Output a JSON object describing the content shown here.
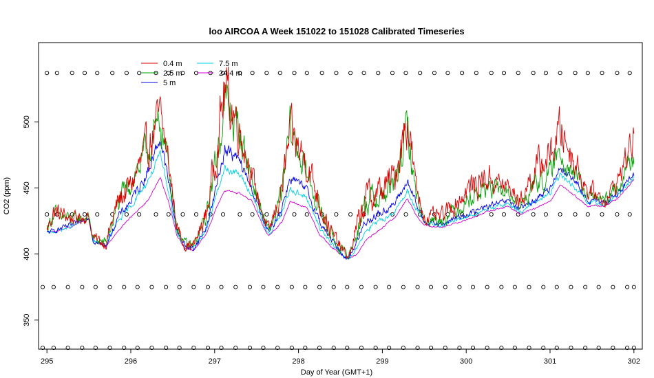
{
  "chart_data": {
    "type": "line",
    "title": "loo AIRCOA A  Week 151022 to 151028  Calibrated Timeseries",
    "xlabel": "Day of Year (GMT+1)",
    "ylabel": "CO2 (ppm)",
    "xlim": [
      294.9,
      302.1
    ],
    "ylim": [
      328,
      560
    ],
    "xticks": [
      295,
      296,
      297,
      298,
      299,
      300,
      301,
      302
    ],
    "yticks": [
      350,
      400,
      450,
      500
    ],
    "grid": false,
    "legend_position": "top-left",
    "series": [
      {
        "name": "0.4 m",
        "color": "#dd0000",
        "amp": 1.35,
        "noise": 9,
        "base": [
          [
            295.0,
            418
          ],
          [
            295.08,
            432
          ],
          [
            295.3,
            427
          ],
          [
            295.5,
            428
          ],
          [
            295.55,
            412
          ],
          [
            295.7,
            408
          ],
          [
            295.85,
            440
          ],
          [
            296.0,
            452
          ],
          [
            296.2,
            480
          ],
          [
            296.35,
            505
          ],
          [
            296.45,
            470
          ],
          [
            296.55,
            420
          ],
          [
            296.65,
            407
          ],
          [
            296.75,
            406
          ],
          [
            296.9,
            430
          ],
          [
            297.0,
            470
          ],
          [
            297.12,
            525
          ],
          [
            297.3,
            495
          ],
          [
            297.45,
            458
          ],
          [
            297.6,
            425
          ],
          [
            297.65,
            417
          ],
          [
            297.8,
            448
          ],
          [
            297.9,
            490
          ],
          [
            298.1,
            470
          ],
          [
            298.25,
            440
          ],
          [
            298.4,
            415
          ],
          [
            298.55,
            400
          ],
          [
            298.6,
            398
          ],
          [
            298.7,
            420
          ],
          [
            298.8,
            442
          ],
          [
            299.0,
            448
          ],
          [
            299.15,
            460
          ],
          [
            299.3,
            505
          ],
          [
            299.4,
            450
          ],
          [
            299.5,
            428
          ],
          [
            299.7,
            428
          ],
          [
            299.9,
            440
          ],
          [
            300.0,
            448
          ],
          [
            300.1,
            452
          ],
          [
            300.25,
            458
          ],
          [
            300.5,
            450
          ],
          [
            300.65,
            440
          ],
          [
            300.8,
            462
          ],
          [
            301.0,
            475
          ],
          [
            301.12,
            495
          ],
          [
            301.3,
            470
          ],
          [
            301.45,
            448
          ],
          [
            301.55,
            446
          ],
          [
            301.65,
            440
          ],
          [
            301.8,
            455
          ],
          [
            302.0,
            488
          ]
        ]
      },
      {
        "name": "2.5 m",
        "color": "#00a000",
        "amp": 1.25,
        "noise": 8,
        "base": [
          [
            295.0,
            420
          ],
          [
            295.08,
            430
          ],
          [
            295.3,
            426
          ],
          [
            295.5,
            428
          ],
          [
            295.55,
            412
          ],
          [
            295.7,
            408
          ],
          [
            295.85,
            438
          ],
          [
            296.0,
            455
          ],
          [
            296.2,
            478
          ],
          [
            296.35,
            500
          ],
          [
            296.45,
            468
          ],
          [
            296.55,
            420
          ],
          [
            296.65,
            407
          ],
          [
            296.75,
            406
          ],
          [
            296.9,
            428
          ],
          [
            297.0,
            465
          ],
          [
            297.12,
            515
          ],
          [
            297.3,
            492
          ],
          [
            297.45,
            455
          ],
          [
            297.6,
            424
          ],
          [
            297.65,
            417
          ],
          [
            297.8,
            445
          ],
          [
            297.9,
            495
          ],
          [
            298.1,
            460
          ],
          [
            298.25,
            435
          ],
          [
            298.4,
            413
          ],
          [
            298.55,
            400
          ],
          [
            298.6,
            398
          ],
          [
            298.7,
            418
          ],
          [
            298.8,
            440
          ],
          [
            299.0,
            444
          ],
          [
            299.15,
            452
          ],
          [
            299.3,
            495
          ],
          [
            299.4,
            446
          ],
          [
            299.5,
            426
          ],
          [
            299.7,
            426
          ],
          [
            299.9,
            435
          ],
          [
            300.0,
            440
          ],
          [
            300.1,
            445
          ],
          [
            300.25,
            450
          ],
          [
            300.5,
            446
          ],
          [
            300.65,
            436
          ],
          [
            300.8,
            452
          ],
          [
            301.0,
            460
          ],
          [
            301.12,
            478
          ],
          [
            301.3,
            460
          ],
          [
            301.45,
            443
          ],
          [
            301.55,
            443
          ],
          [
            301.65,
            440
          ],
          [
            301.8,
            450
          ],
          [
            302.0,
            475
          ]
        ]
      },
      {
        "name": "5 m",
        "color": "#0000ee",
        "amp": 1.0,
        "noise": 4,
        "base": [
          [
            295.0,
            416
          ],
          [
            295.1,
            418
          ],
          [
            295.3,
            422
          ],
          [
            295.5,
            428
          ],
          [
            295.55,
            410
          ],
          [
            295.7,
            406
          ],
          [
            295.85,
            428
          ],
          [
            296.0,
            440
          ],
          [
            296.2,
            462
          ],
          [
            296.35,
            488
          ],
          [
            296.45,
            455
          ],
          [
            296.55,
            418
          ],
          [
            296.65,
            406
          ],
          [
            296.75,
            404
          ],
          [
            296.9,
            420
          ],
          [
            297.0,
            445
          ],
          [
            297.12,
            480
          ],
          [
            297.3,
            470
          ],
          [
            297.45,
            448
          ],
          [
            297.6,
            422
          ],
          [
            297.65,
            416
          ],
          [
            297.8,
            435
          ],
          [
            297.9,
            458
          ],
          [
            298.1,
            448
          ],
          [
            298.25,
            425
          ],
          [
            298.4,
            410
          ],
          [
            298.55,
            398
          ],
          [
            298.6,
            397
          ],
          [
            298.7,
            410
          ],
          [
            298.8,
            425
          ],
          [
            299.0,
            432
          ],
          [
            299.15,
            438
          ],
          [
            299.3,
            455
          ],
          [
            299.4,
            438
          ],
          [
            299.5,
            425
          ],
          [
            299.7,
            422
          ],
          [
            299.9,
            428
          ],
          [
            300.0,
            430
          ],
          [
            300.1,
            432
          ],
          [
            300.25,
            436
          ],
          [
            300.5,
            440
          ],
          [
            300.65,
            434
          ],
          [
            300.8,
            440
          ],
          [
            301.0,
            450
          ],
          [
            301.12,
            466
          ],
          [
            301.3,
            455
          ],
          [
            301.45,
            440
          ],
          [
            301.55,
            440
          ],
          [
            301.65,
            438
          ],
          [
            301.8,
            446
          ],
          [
            302.0,
            460
          ]
        ]
      },
      {
        "name": "7.5 m",
        "color": "#00d0e0",
        "amp": 1.0,
        "noise": 3,
        "base": [
          [
            295.0,
            416
          ],
          [
            295.1,
            417
          ],
          [
            295.3,
            421
          ],
          [
            295.5,
            427
          ],
          [
            295.55,
            410
          ],
          [
            295.7,
            406
          ],
          [
            295.85,
            425
          ],
          [
            296.0,
            436
          ],
          [
            296.2,
            455
          ],
          [
            296.35,
            475
          ],
          [
            296.45,
            448
          ],
          [
            296.55,
            416
          ],
          [
            296.65,
            405
          ],
          [
            296.75,
            404
          ],
          [
            296.9,
            418
          ],
          [
            297.0,
            440
          ],
          [
            297.12,
            465
          ],
          [
            297.3,
            460
          ],
          [
            297.45,
            444
          ],
          [
            297.6,
            420
          ],
          [
            297.65,
            415
          ],
          [
            297.8,
            430
          ],
          [
            297.9,
            450
          ],
          [
            298.1,
            442
          ],
          [
            298.25,
            420
          ],
          [
            298.4,
            408
          ],
          [
            298.55,
            398
          ],
          [
            298.6,
            397
          ],
          [
            298.7,
            405
          ],
          [
            298.8,
            418
          ],
          [
            299.0,
            426
          ],
          [
            299.15,
            432
          ],
          [
            299.3,
            448
          ],
          [
            299.4,
            434
          ],
          [
            299.5,
            424
          ],
          [
            299.7,
            421
          ],
          [
            299.9,
            426
          ],
          [
            300.0,
            428
          ],
          [
            300.1,
            430
          ],
          [
            300.25,
            434
          ],
          [
            300.5,
            438
          ],
          [
            300.65,
            432
          ],
          [
            300.8,
            438
          ],
          [
            301.0,
            446
          ],
          [
            301.12,
            460
          ],
          [
            301.3,
            450
          ],
          [
            301.45,
            438
          ],
          [
            301.55,
            439
          ],
          [
            301.65,
            437
          ],
          [
            301.8,
            444
          ],
          [
            302.0,
            458
          ]
        ]
      },
      {
        "name": "24.4 m",
        "color": "#d000d0",
        "amp": 1.0,
        "noise": 1.5,
        "base": [
          [
            295.0,
            417
          ],
          [
            295.1,
            417
          ],
          [
            295.3,
            421
          ],
          [
            295.5,
            427
          ],
          [
            295.55,
            410
          ],
          [
            295.7,
            405
          ],
          [
            295.85,
            418
          ],
          [
            296.0,
            428
          ],
          [
            296.2,
            440
          ],
          [
            296.35,
            458
          ],
          [
            296.45,
            440
          ],
          [
            296.55,
            414
          ],
          [
            296.65,
            404
          ],
          [
            296.75,
            403
          ],
          [
            296.9,
            415
          ],
          [
            297.0,
            432
          ],
          [
            297.12,
            448
          ],
          [
            297.3,
            446
          ],
          [
            297.45,
            440
          ],
          [
            297.6,
            418
          ],
          [
            297.65,
            414
          ],
          [
            297.8,
            424
          ],
          [
            297.9,
            440
          ],
          [
            298.1,
            435
          ],
          [
            298.25,
            415
          ],
          [
            298.4,
            405
          ],
          [
            298.55,
            398
          ],
          [
            298.6,
            397
          ],
          [
            298.7,
            400
          ],
          [
            298.8,
            410
          ],
          [
            299.0,
            420
          ],
          [
            299.15,
            428
          ],
          [
            299.3,
            442
          ],
          [
            299.4,
            430
          ],
          [
            299.5,
            422
          ],
          [
            299.7,
            420
          ],
          [
            299.9,
            424
          ],
          [
            300.0,
            426
          ],
          [
            300.1,
            428
          ],
          [
            300.25,
            432
          ],
          [
            300.5,
            436
          ],
          [
            300.65,
            430
          ],
          [
            300.8,
            434
          ],
          [
            301.0,
            440
          ],
          [
            301.12,
            452
          ],
          [
            301.3,
            444
          ],
          [
            301.45,
            436
          ],
          [
            301.55,
            437
          ],
          [
            301.65,
            436
          ],
          [
            301.8,
            442
          ],
          [
            302.0,
            456
          ]
        ]
      }
    ],
    "marker_rows": [
      {
        "y": 537,
        "xs": [
          295.0,
          295.12,
          295.3,
          295.45,
          295.6,
          295.78,
          295.95,
          296.1,
          296.3,
          296.45,
          296.62,
          296.78,
          296.95,
          297.1,
          297.3,
          297.45,
          297.62,
          297.78,
          297.95,
          298.1,
          298.28,
          298.45,
          298.62,
          298.78,
          298.95,
          299.12,
          299.28,
          299.45,
          299.62,
          299.78,
          299.95,
          300.12,
          300.3,
          300.45,
          300.62,
          300.8,
          300.95,
          301.12,
          301.3,
          301.45,
          301.62,
          301.8,
          301.95
        ]
      },
      {
        "y": 430,
        "xs": [
          295.0,
          295.12,
          295.3,
          295.45,
          295.6,
          295.78,
          295.95,
          296.1,
          296.3,
          296.45,
          296.62,
          296.78,
          296.95,
          297.1,
          297.3,
          297.45,
          297.62,
          297.78,
          297.95,
          298.1,
          298.28,
          298.45,
          298.62,
          298.78,
          298.95,
          299.12,
          299.28,
          299.45,
          299.62,
          299.78,
          299.95,
          300.12,
          300.3,
          300.45,
          300.62,
          300.8,
          300.95,
          301.12,
          301.3,
          301.45,
          301.62,
          301.8,
          301.95
        ]
      },
      {
        "y": 375,
        "xs": [
          294.95,
          295.08,
          295.25,
          295.42,
          295.58,
          295.75,
          295.92,
          296.08,
          296.25,
          296.42,
          296.58,
          296.75,
          296.92,
          297.08,
          297.25,
          297.42,
          297.58,
          297.75,
          297.92,
          298.08,
          298.25,
          298.42,
          298.58,
          298.75,
          298.92,
          299.08,
          299.25,
          299.42,
          299.58,
          299.75,
          299.92,
          300.08,
          300.25,
          300.42,
          300.58,
          300.75,
          300.92,
          301.08,
          301.25,
          301.42,
          301.58,
          301.75,
          301.92,
          302.0
        ]
      },
      {
        "y": 329,
        "xs": [
          294.95,
          295.08,
          295.25,
          295.42,
          295.58,
          295.75,
          295.92,
          296.08,
          296.25,
          296.42,
          296.58,
          296.75,
          296.92,
          297.08,
          297.25,
          297.42,
          297.58,
          297.75,
          297.92,
          298.08,
          298.25,
          298.42,
          298.58,
          298.75,
          298.92,
          299.08,
          299.25,
          299.42,
          299.58,
          299.75,
          299.92,
          300.08,
          300.25,
          300.42,
          300.58,
          300.75,
          300.92,
          301.08,
          301.25,
          301.42,
          301.58,
          301.75,
          301.92,
          302.0
        ]
      }
    ]
  }
}
